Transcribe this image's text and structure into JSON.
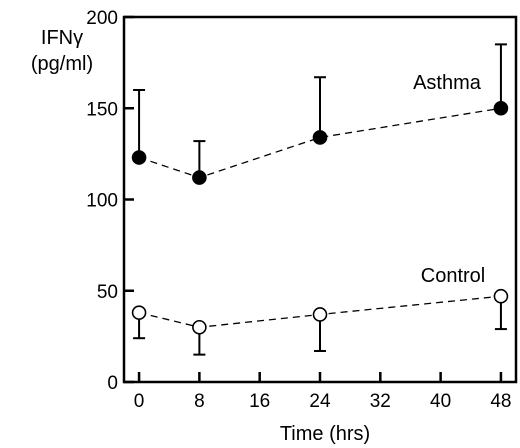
{
  "chart_data": {
    "type": "line",
    "title": "",
    "xlabel": "Time (hrs)",
    "ylabel": "IFNγ",
    "ylabel_unit": "(pg/ml)",
    "xlim": [
      -2,
      50
    ],
    "ylim": [
      0,
      200
    ],
    "x_ticks": [
      0,
      8,
      16,
      24,
      32,
      40,
      48
    ],
    "y_ticks": [
      0,
      50,
      100,
      150,
      200
    ],
    "grid": false,
    "legend": "none",
    "series": [
      {
        "name": "Asthma",
        "marker": "filled-circle",
        "line_style": "dashed",
        "color": "#000000",
        "x": [
          0,
          8,
          24,
          48
        ],
        "y": [
          123,
          112,
          134,
          150
        ],
        "error_upper": [
          160,
          132,
          167,
          185
        ],
        "error_direction": "up"
      },
      {
        "name": "Control",
        "marker": "open-circle",
        "line_style": "dashed",
        "color": "#000000",
        "x": [
          0,
          8,
          24,
          48
        ],
        "y": [
          38,
          30,
          37,
          47
        ],
        "error_lower": [
          24,
          15,
          17,
          29
        ],
        "error_direction": "down"
      }
    ]
  }
}
